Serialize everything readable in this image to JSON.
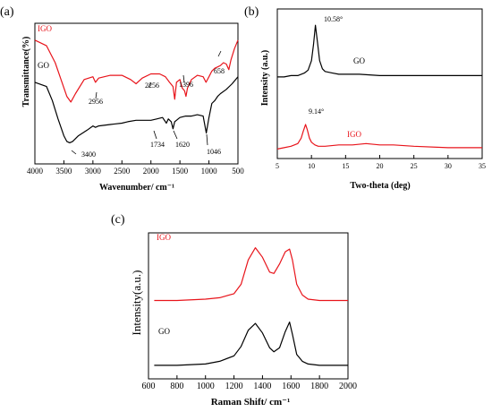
{
  "panels": {
    "a": {
      "label": "(a)"
    },
    "b": {
      "label": "(b)"
    },
    "c": {
      "label": "(c)"
    }
  },
  "colors": {
    "go": "#000000",
    "igo": "#e8141b",
    "axis": "#000000"
  },
  "chart_data": [
    {
      "type": "line",
      "panel": "(a)",
      "xlabel": "Wavenumber/ cm⁻¹",
      "ylabel": "Transmittance(%)",
      "xlim": [
        4000,
        500
      ],
      "x_ticks": [
        4000,
        3500,
        3000,
        2500,
        2000,
        1500,
        1000,
        500
      ],
      "y_ticks_shown": false,
      "series": [
        {
          "name": "IGO",
          "color": "#e8141b",
          "x": [
            4000,
            3800,
            3650,
            3550,
            3450,
            3380,
            3300,
            3150,
            3000,
            2956,
            2900,
            2700,
            2500,
            2350,
            2256,
            2150,
            2000,
            1850,
            1750,
            1680,
            1620,
            1590,
            1560,
            1500,
            1460,
            1420,
            1396,
            1370,
            1300,
            1200,
            1100,
            1050,
            1000,
            950,
            900,
            850,
            800,
            750,
            700,
            658,
            620,
            560,
            500
          ],
          "values": [
            88,
            84,
            72,
            60,
            48,
            44,
            50,
            60,
            62,
            58,
            61,
            63,
            63,
            60,
            57,
            61,
            64,
            64,
            62,
            58,
            55,
            46,
            58,
            60,
            54,
            52,
            48,
            54,
            60,
            63,
            62,
            58,
            62,
            66,
            68,
            69,
            70,
            72,
            71,
            67,
            74,
            82,
            88
          ]
        },
        {
          "name": "GO",
          "color": "#000000",
          "x": [
            4000,
            3800,
            3700,
            3600,
            3500,
            3450,
            3400,
            3350,
            3250,
            3100,
            3000,
            2956,
            2900,
            2700,
            2500,
            2400,
            2256,
            2200,
            2100,
            2000,
            1900,
            1800,
            1734,
            1700,
            1650,
            1620,
            1590,
            1560,
            1500,
            1400,
            1300,
            1200,
            1100,
            1046,
            1000,
            950,
            900,
            850,
            800,
            700,
            600,
            500
          ],
          "values": [
            58,
            55,
            45,
            32,
            20,
            16,
            15,
            16,
            20,
            24,
            27,
            26,
            27,
            28,
            29,
            30,
            31,
            31,
            31,
            31,
            32,
            33,
            29,
            32,
            30,
            25,
            30,
            31,
            33,
            34,
            34,
            35,
            34,
            22,
            33,
            43,
            45,
            48,
            50,
            53,
            57,
            62
          ]
        }
      ],
      "annotations": [
        "2956",
        "2256",
        "1396",
        "658",
        "3400",
        "1734",
        "1620",
        "1046"
      ]
    },
    {
      "type": "line",
      "panel": "(b)",
      "xlabel": "Two-theta (deg)",
      "ylabel": "Intensity (a.u.)",
      "xlim": [
        5,
        35
      ],
      "x_ticks": [
        5,
        10,
        15,
        20,
        25,
        30,
        35
      ],
      "y_ticks_shown": false,
      "series": [
        {
          "name": "GO",
          "color": "#000000",
          "x": [
            5,
            6,
            7,
            8,
            8.5,
            9,
            9.5,
            10,
            10.3,
            10.58,
            10.9,
            11.2,
            11.6,
            12,
            13,
            14,
            15,
            17,
            20,
            25,
            30,
            35
          ],
          "values": [
            60,
            60,
            61,
            61,
            62,
            63,
            65,
            72,
            84,
            98,
            85,
            72,
            66,
            64,
            63,
            62,
            62,
            62,
            61,
            61,
            61,
            61
          ]
        },
        {
          "name": "IGO",
          "color": "#e8141b",
          "x": [
            5,
            6,
            7,
            8,
            8.5,
            8.8,
            9.14,
            9.4,
            9.7,
            10,
            10.5,
            11,
            12,
            14,
            16,
            18,
            20,
            22,
            25,
            30,
            35
          ],
          "values": [
            7,
            8,
            9,
            11,
            15,
            20,
            25,
            21,
            15,
            12,
            10,
            9,
            9,
            10,
            10,
            11,
            10,
            10,
            9,
            8,
            8
          ]
        }
      ],
      "annotations": [
        "10.58°",
        "9.14°"
      ]
    },
    {
      "type": "line",
      "panel": "(c)",
      "xlabel": "Raman Shift/ cm⁻¹",
      "ylabel": "Intensity(a.u.)",
      "xlim": [
        600,
        2000
      ],
      "x_ticks": [
        600,
        800,
        1000,
        1200,
        1400,
        1600,
        1800,
        2000
      ],
      "y_ticks_shown": false,
      "series": [
        {
          "name": "IGO",
          "color": "#e8141b",
          "x": [
            640,
            800,
            1000,
            1100,
            1200,
            1250,
            1300,
            1350,
            1400,
            1450,
            1480,
            1520,
            1560,
            1590,
            1610,
            1640,
            1680,
            1720,
            1800,
            1900,
            2000
          ],
          "values": [
            50,
            50,
            51,
            52,
            55,
            62,
            80,
            89,
            82,
            71,
            70,
            77,
            86,
            88,
            80,
            62,
            54,
            51,
            50,
            50,
            50
          ]
        },
        {
          "name": "GO",
          "color": "#000000",
          "x": [
            640,
            800,
            1000,
            1100,
            1200,
            1250,
            1300,
            1350,
            1400,
            1450,
            1480,
            1520,
            1560,
            1590,
            1610,
            1640,
            1680,
            1720,
            1800,
            1900,
            2000
          ],
          "values": [
            2,
            2,
            3,
            5,
            9,
            16,
            28,
            33,
            26,
            15,
            12,
            15,
            27,
            34,
            25,
            10,
            5,
            3,
            2,
            2,
            2
          ]
        }
      ],
      "annotations": []
    }
  ]
}
